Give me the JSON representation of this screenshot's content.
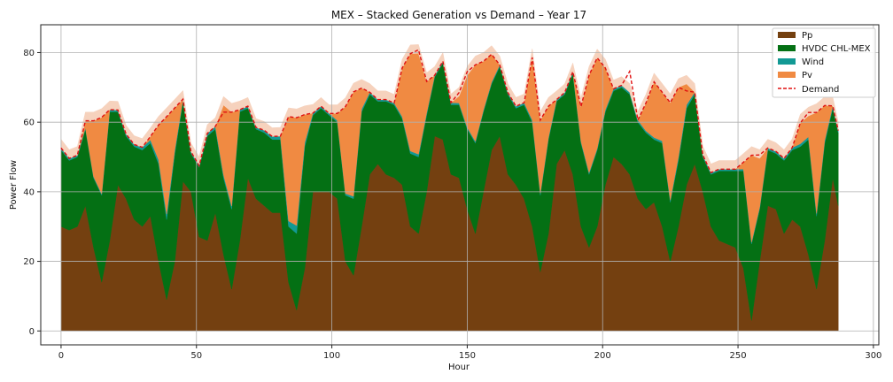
{
  "chart_data": {
    "type": "area",
    "title": "MEX – Stacked Generation vs Demand – Year 17",
    "xlabel": "Hour",
    "ylabel": "Power Flow",
    "xlim": [
      -7.5,
      302
    ],
    "ylim": [
      -4,
      88
    ],
    "xticks": [
      0,
      50,
      100,
      150,
      200,
      250,
      300
    ],
    "yticks": [
      0,
      20,
      40,
      60,
      80
    ],
    "grid": true,
    "legend_position": "top-right",
    "x_keys": [
      0,
      3,
      6,
      9,
      12,
      15,
      18,
      21,
      24,
      27,
      30,
      33,
      36,
      39,
      42,
      45,
      48,
      51,
      54,
      57,
      60,
      63,
      66,
      69,
      72,
      75,
      78,
      81,
      84,
      87,
      90,
      93,
      96,
      99,
      102,
      105,
      108,
      111,
      114,
      117,
      120,
      123,
      126,
      129,
      132,
      135,
      138,
      141,
      144,
      147,
      150,
      153,
      156,
      159,
      162,
      165,
      168,
      171,
      174,
      177,
      180,
      183,
      186,
      189,
      192,
      195,
      198,
      201,
      204,
      207,
      210,
      213,
      216,
      219,
      222,
      225,
      228,
      231,
      234,
      237,
      240,
      243,
      246,
      249,
      252,
      255,
      258,
      261,
      264,
      267,
      270,
      273,
      276,
      279,
      282,
      285,
      287
    ],
    "series": [
      {
        "name": "Pp",
        "color": "#744010",
        "values": [
          30,
          29,
          30,
          36,
          24,
          14,
          26,
          42,
          38,
          32,
          30,
          33,
          20,
          9,
          20,
          43,
          40,
          27,
          26,
          34,
          22,
          12,
          26,
          44,
          38,
          36,
          34,
          34,
          14,
          6,
          18,
          40,
          40,
          40,
          38,
          20,
          16,
          30,
          45,
          48,
          45,
          44,
          42,
          30,
          28,
          40,
          56,
          55,
          45,
          44,
          35,
          28,
          40,
          52,
          56,
          45,
          42,
          38,
          30,
          17,
          28,
          48,
          52,
          45,
          30,
          24,
          30,
          42,
          50,
          48,
          45,
          38,
          35,
          37,
          30,
          20,
          30,
          42,
          48,
          40,
          30,
          26,
          25,
          24,
          18,
          3,
          20,
          36,
          35,
          28,
          32,
          30,
          22,
          12,
          26,
          44,
          36
        ]
      },
      {
        "name": "HVDC CHL-MEX",
        "color": "#047014",
        "values": [
          22,
          20,
          20,
          22,
          20,
          25,
          37,
          21,
          18,
          21,
          22,
          21,
          28,
          23,
          31,
          23,
          11,
          20,
          30,
          24,
          22,
          23,
          37,
          20,
          20,
          21,
          21,
          21,
          16,
          22,
          35,
          22,
          24,
          22,
          22,
          19,
          22,
          33,
          23,
          18,
          21,
          21,
          19,
          21,
          22,
          22,
          17,
          22,
          20,
          21,
          23,
          26,
          23,
          19,
          20,
          23,
          22,
          27,
          30,
          22,
          27,
          18,
          16,
          29,
          24,
          21,
          22,
          21,
          19,
          22,
          23,
          22,
          22,
          18,
          24,
          17,
          19,
          22,
          20,
          10,
          15,
          20,
          21,
          22,
          28,
          22,
          15,
          16,
          16,
          21,
          20,
          23,
          33,
          21,
          28,
          20,
          21
        ]
      },
      {
        "name": "Wind",
        "color": "#129994",
        "values": [
          0.6,
          0.6,
          0.5,
          0.4,
          0.4,
          0.4,
          0.6,
          0.5,
          0.6,
          0.6,
          0.8,
          0.9,
          1.2,
          1.6,
          1.1,
          0.6,
          0.5,
          0.5,
          0.8,
          0.8,
          0.9,
          0.9,
          0.6,
          0.6,
          0.5,
          0.7,
          0.9,
          1.0,
          1.6,
          2.3,
          1.2,
          0.6,
          0.6,
          0.5,
          0.5,
          0.5,
          0.7,
          0.8,
          0.6,
          0.5,
          0.5,
          0.5,
          0.6,
          0.7,
          0.8,
          0.7,
          0.5,
          0.5,
          0.6,
          0.5,
          0.5,
          0.5,
          0.5,
          0.5,
          0.5,
          0.5,
          0.6,
          0.6,
          0.6,
          0.6,
          0.6,
          0.5,
          0.5,
          0.5,
          0.5,
          0.5,
          0.5,
          0.6,
          0.6,
          0.6,
          0.6,
          0.6,
          0.5,
          0.6,
          0.6,
          0.6,
          1.0,
          1.0,
          0.6,
          0.6,
          0.5,
          0.5,
          0.5,
          0.5,
          0.5,
          0.5,
          0.6,
          0.6,
          0.6,
          0.6,
          0.7,
          0.8,
          0.8,
          0.8,
          0.8,
          0.7,
          0.6
        ]
      },
      {
        "name": "Pv",
        "color": "#f08a42",
        "values": [
          0,
          0,
          0,
          2,
          16,
          22,
          0,
          0,
          0,
          0,
          0,
          1,
          10,
          28,
          12,
          0,
          0,
          0,
          0,
          0,
          20,
          27,
          0,
          0,
          0,
          0,
          0,
          0,
          30,
          31,
          8,
          0,
          0,
          0,
          2,
          25,
          30,
          6,
          0,
          0,
          0,
          0,
          14,
          28,
          29,
          9,
          0,
          0,
          0,
          2,
          15,
          22,
          14,
          8,
          0,
          0,
          0,
          0,
          18,
          21,
          9,
          0,
          0,
          0,
          10,
          28,
          26,
          12,
          0,
          0,
          0,
          0,
          8,
          16,
          14,
          28,
          20,
          6,
          0,
          0,
          0,
          0,
          0,
          0,
          2,
          25,
          14,
          0,
          0,
          0,
          0,
          6,
          6,
          29,
          10,
          0,
          0
        ]
      },
      {
        "name": "",
        "color": "#f6d2bd",
        "values": [
          2.5,
          2.5,
          2.5,
          2.5,
          2.5,
          2.5,
          2.5,
          2.5,
          2.5,
          2.5,
          2.5,
          2.5,
          2.5,
          2.5,
          2.5,
          2.5,
          2.5,
          2.5,
          2.5,
          2.5,
          2.5,
          2.5,
          2.5,
          2.5,
          2.5,
          2.5,
          2.5,
          2.5,
          2.5,
          2.5,
          2.5,
          2.5,
          2.5,
          2.5,
          2.5,
          2.5,
          2.5,
          2.5,
          2.5,
          2.5,
          2.5,
          2.5,
          2.5,
          2.5,
          2.5,
          2.5,
          2.5,
          2.5,
          2.5,
          2.5,
          2.5,
          2.5,
          2.5,
          2.5,
          2.5,
          2.5,
          2.5,
          2.5,
          2.5,
          2.5,
          2.5,
          2.5,
          2.5,
          2.5,
          2.5,
          2.5,
          2.5,
          2.5,
          2.5,
          2.5,
          2.5,
          2.5,
          2.5,
          2.5,
          2.5,
          2.5,
          2.5,
          2.5,
          2.5,
          2.5,
          2.5,
          2.5,
          2.5,
          2.5,
          2.5,
          2.5,
          2.5,
          2.5,
          2.5,
          2.5,
          2.5,
          2.5,
          2.5,
          2.5,
          2.5,
          2.5,
          2.5
        ]
      }
    ],
    "demand": {
      "name": "Demand",
      "color": "#e01010",
      "style": "dashed",
      "values": [
        52.6,
        49.6,
        50.5,
        60.4,
        60.4,
        61.4,
        63.6,
        63.5,
        56.6,
        53.6,
        52.8,
        55.9,
        59.2,
        61.6,
        64.1,
        66.6,
        51.5,
        47.5,
        56.8,
        58.8,
        62.9,
        62.9,
        63.6,
        64.6,
        58.5,
        57.7,
        55.9,
        56.0,
        61.6,
        61.3,
        62.2,
        62.6,
        64.6,
        62.5,
        62.5,
        64.5,
        68.7,
        69.8,
        68.6,
        66.5,
        66.5,
        65.5,
        75.6,
        79.7,
        80.8,
        71.7,
        73.5,
        77.5,
        65.6,
        68.5,
        74.5,
        76.5,
        77.5,
        79.5,
        76.5,
        68.5,
        64.6,
        65.6,
        78.6,
        60.6,
        64.6,
        66.5,
        68.5,
        74.5,
        64.5,
        73.5,
        78.5,
        75.6,
        69.6,
        70.6,
        74.6,
        60.6,
        65.5,
        71.6,
        68.6,
        65.6,
        70.0,
        69.0,
        68.6,
        50.6,
        45.5,
        46.5,
        46.5,
        46.5,
        48.5,
        50.5,
        50.6,
        52.6,
        51.6,
        49.6,
        52.7,
        59.8,
        62.8,
        62.8,
        64.8,
        64.7,
        57.6
      ]
    }
  }
}
